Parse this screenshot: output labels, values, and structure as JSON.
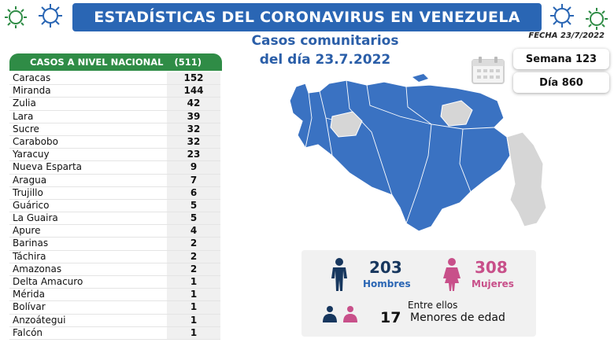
{
  "header": {
    "title": "ESTADÍSTICAS DEL CORONAVIRUS EN VENEZUELA",
    "subtitle_line1": "Casos comunitarios",
    "subtitle_line2": "del día 23.7.2022",
    "fecha": "FECHA 23/7/2022"
  },
  "table": {
    "heading": "CASOS A NIVEL NACIONAL",
    "total": "(511)",
    "rows": [
      {
        "name": "Caracas",
        "value": "152"
      },
      {
        "name": "Miranda",
        "value": "144"
      },
      {
        "name": "Zulia",
        "value": "42"
      },
      {
        "name": "Lara",
        "value": "39"
      },
      {
        "name": "Sucre",
        "value": "32"
      },
      {
        "name": "Carabobo",
        "value": "32"
      },
      {
        "name": "Yaracuy",
        "value": "23"
      },
      {
        "name": "Nueva Esparta",
        "value": "9"
      },
      {
        "name": "Aragua",
        "value": "7"
      },
      {
        "name": "Trujillo",
        "value": "6"
      },
      {
        "name": "Guárico",
        "value": "5"
      },
      {
        "name": "La Guaira",
        "value": "5"
      },
      {
        "name": "Apure",
        "value": "4"
      },
      {
        "name": "Barinas",
        "value": "2"
      },
      {
        "name": "Táchira",
        "value": "2"
      },
      {
        "name": "Amazonas",
        "value": "2"
      },
      {
        "name": "Delta Amacuro",
        "value": "1"
      },
      {
        "name": "Mérida",
        "value": "1"
      },
      {
        "name": "Bolívar",
        "value": "1"
      },
      {
        "name": "Anzoátegui",
        "value": "1"
      },
      {
        "name": "Falcón",
        "value": "1"
      }
    ]
  },
  "info": {
    "semana": "Semana 123",
    "dia": "Día 860"
  },
  "stats": {
    "hombres_count": "203",
    "hombres_label": "Hombres",
    "mujeres_count": "308",
    "mujeres_label": "Mujeres",
    "entre_ellos": "Entre ellos",
    "menores_count": "17",
    "menores_label": "Menores de edad"
  },
  "colors": {
    "banner_blue": "#2a66b4",
    "table_green": "#2f8c46",
    "map_blue": "#3a72c2",
    "map_grey": "#d6d6d6",
    "male_navy": "#17375e",
    "female_pink": "#c8508a"
  },
  "icons": [
    "virus-icon",
    "calendar-icon",
    "male-icon",
    "female-icon",
    "children-icon"
  ]
}
